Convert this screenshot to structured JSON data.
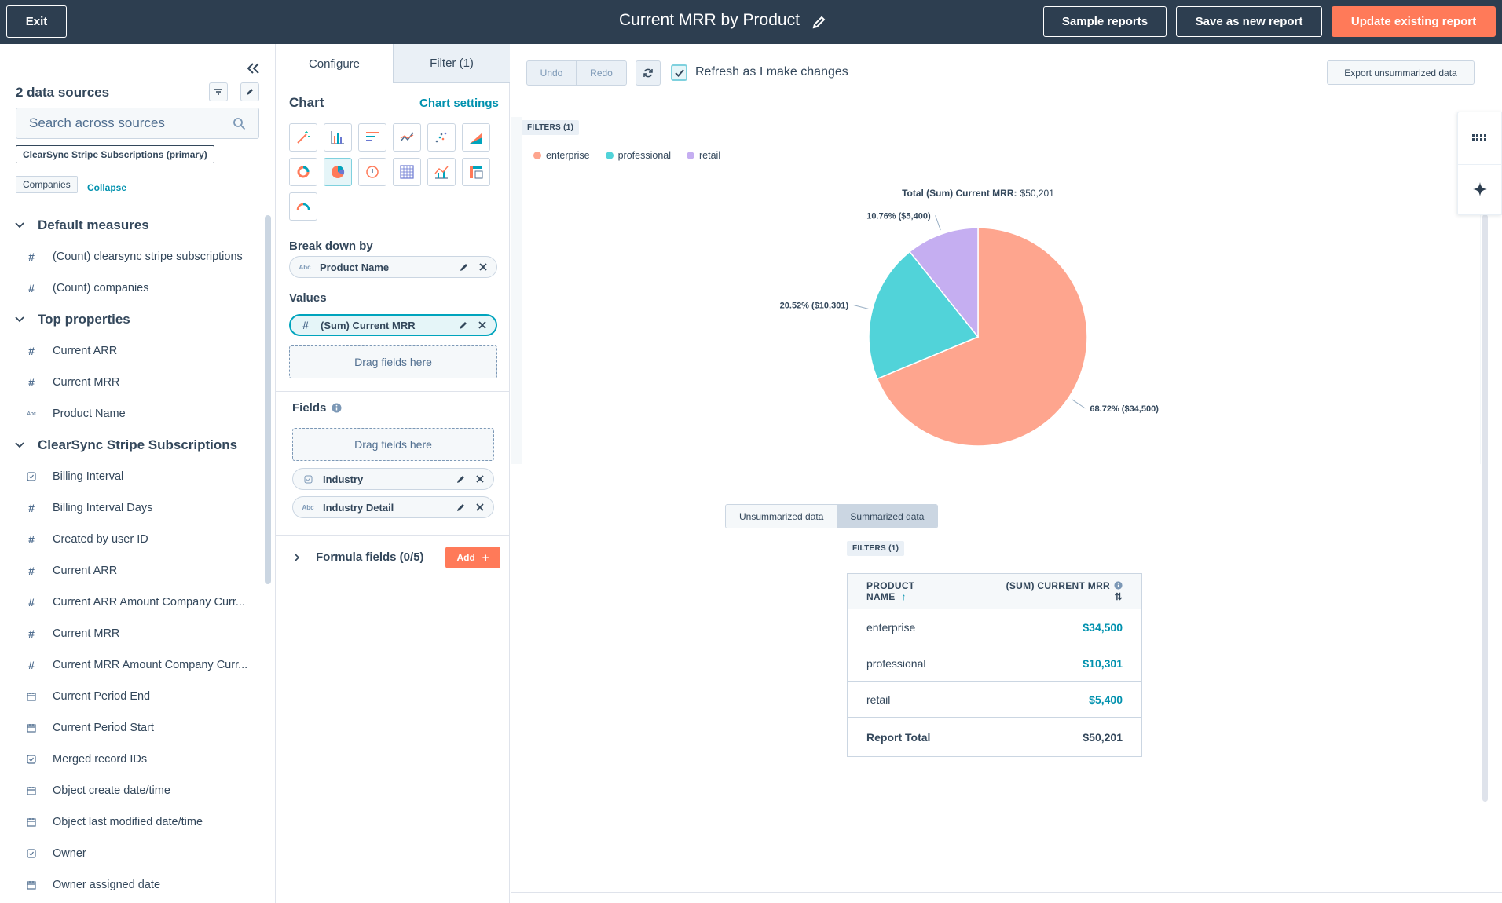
{
  "topbar": {
    "exit_label": "Exit",
    "title": "Current MRR by Product",
    "sample_reports": "Sample reports",
    "save_new": "Save as new report",
    "update_existing": "Update existing report"
  },
  "sources": {
    "title": "2 data sources",
    "search_placeholder": "Search across sources",
    "primary_tag": "ClearSync Stripe Subscriptions (primary)",
    "secondary_tag": "Companies",
    "collapse_link": "Collapse"
  },
  "property_groups": [
    {
      "section": "Default measures",
      "items": [
        {
          "icon": "hash",
          "label": "(Count) clearsync stripe subscriptions"
        },
        {
          "icon": "hash",
          "label": "(Count) companies"
        }
      ]
    },
    {
      "section": "Top properties",
      "items": [
        {
          "icon": "hash",
          "label": "Current ARR"
        },
        {
          "icon": "hash",
          "label": "Current MRR"
        },
        {
          "icon": "text",
          "label": "Product Name"
        }
      ]
    },
    {
      "section": "ClearSync Stripe Subscriptions",
      "items": [
        {
          "icon": "enum",
          "label": "Billing Interval"
        },
        {
          "icon": "hash",
          "label": "Billing Interval Days"
        },
        {
          "icon": "hash",
          "label": "Created by user ID"
        },
        {
          "icon": "hash",
          "label": "Current ARR"
        },
        {
          "icon": "hash",
          "label": "Current ARR Amount Company Curr..."
        },
        {
          "icon": "hash",
          "label": "Current MRR"
        },
        {
          "icon": "hash",
          "label": "Current MRR Amount Company Curr..."
        },
        {
          "icon": "date",
          "label": "Current Period End"
        },
        {
          "icon": "date",
          "label": "Current Period Start"
        },
        {
          "icon": "enum",
          "label": "Merged record IDs"
        },
        {
          "icon": "date",
          "label": "Object create date/time"
        },
        {
          "icon": "date",
          "label": "Object last modified date/time"
        },
        {
          "icon": "enum",
          "label": "Owner"
        },
        {
          "icon": "date",
          "label": "Owner assigned date"
        }
      ]
    }
  ],
  "config": {
    "tab_configure": "Configure",
    "tab_filter": "Filter (1)",
    "chart_label": "Chart",
    "chart_settings": "Chart settings",
    "breakdown_label": "Break down by",
    "breakdown_field": "Product Name",
    "values_label": "Values",
    "values_field": "(Sum) Current MRR",
    "drag_here": "Drag fields here",
    "fields_label": "Fields",
    "field_1": "Industry",
    "field_2": "Industry Detail",
    "formula_label": "Formula fields (0/5)",
    "add_label": "Add"
  },
  "toolbar": {
    "undo": "Undo",
    "redo": "Redo",
    "refresh_label": "Refresh as I make changes",
    "export_label": "Export unsummarized data"
  },
  "filters_badge": "FILTERS (1)",
  "chart_data": {
    "type": "pie",
    "title_bold": "Total (Sum) Current MRR:",
    "title_value": "$50,201",
    "categories": [
      "enterprise",
      "professional",
      "retail"
    ],
    "values": [
      34500,
      10301,
      5400
    ],
    "data_labels": [
      "68.72% ($34,500)",
      "20.52% ($10,301)",
      "10.76% ($5,400)"
    ],
    "colors": [
      "#fea58e",
      "#51d3d9",
      "#c5aef1"
    ],
    "legend_position": "top-left"
  },
  "table": {
    "seg_unsummarized": "Unsummarized data",
    "seg_summarized": "Summarized data",
    "col_1": "PRODUCT NAME",
    "col_2": "(SUM) CURRENT MRR",
    "rows": [
      {
        "name": "enterprise",
        "value": "$34,500"
      },
      {
        "name": "professional",
        "value": "$10,301"
      },
      {
        "name": "retail",
        "value": "$5,400"
      }
    ],
    "total_label": "Report Total",
    "total_value": "$50,201"
  }
}
